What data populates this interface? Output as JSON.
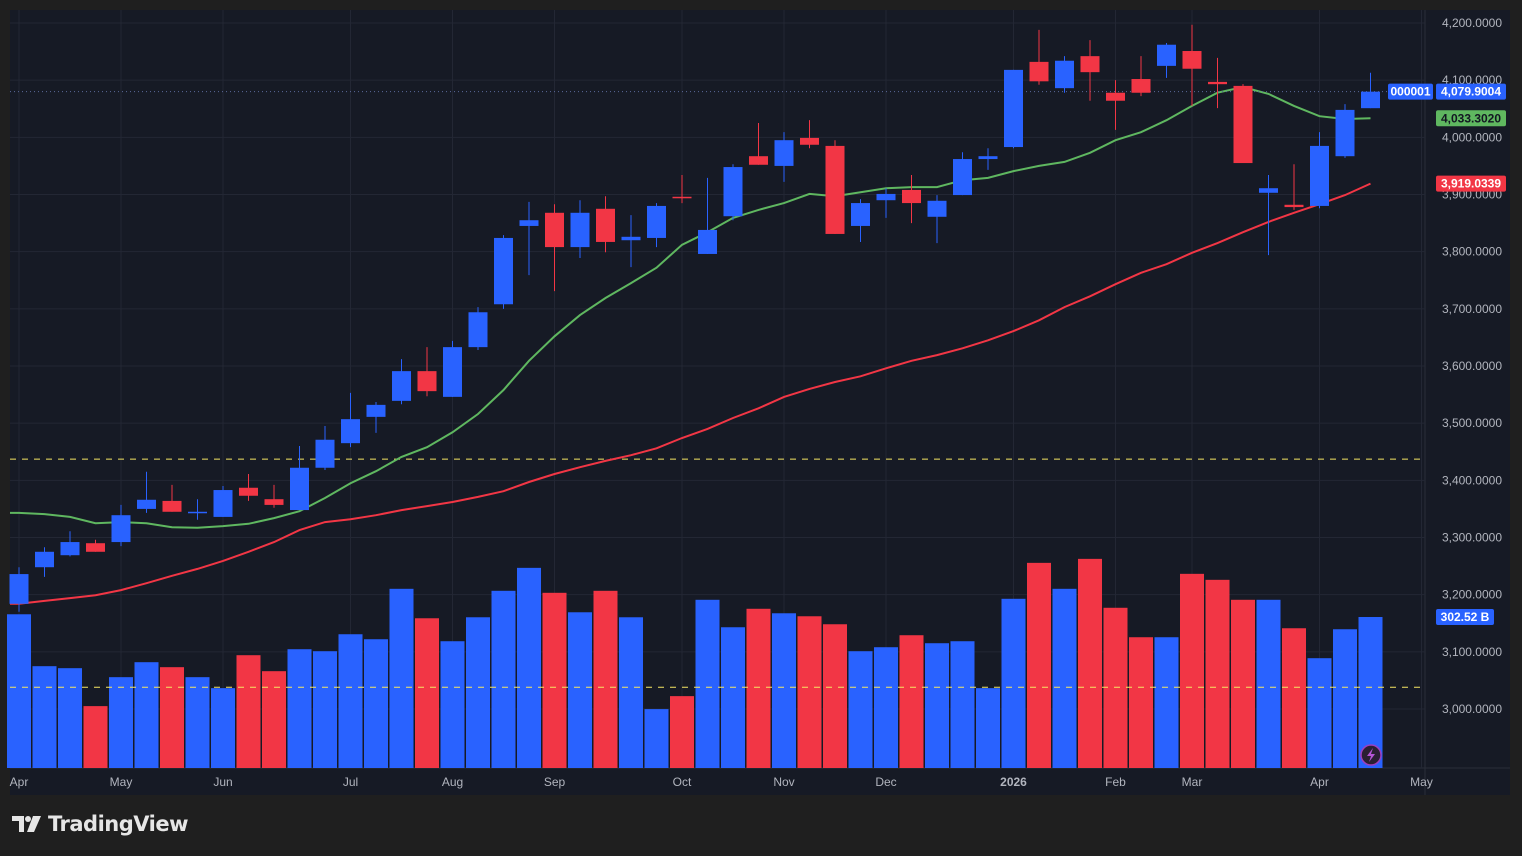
{
  "brand": {
    "name": "TradingView"
  },
  "colors": {
    "up": "#2962ff",
    "down": "#f23645",
    "ma_fast": "#5fb760",
    "ma_slow": "#f23645",
    "ref_line": "#f5e663",
    "background": "#161a25",
    "grid": "#232734",
    "text": "#b2b5be"
  },
  "chart_data": {
    "type": "candlestick",
    "interval": "weekly",
    "symbol_badge": "000001",
    "ylim": [
      2910,
      4230
    ],
    "y_ticks": [
      4200,
      4100,
      4000,
      3900,
      3800,
      3700,
      3600,
      3500,
      3400,
      3300,
      3200,
      3100,
      3000
    ],
    "y_tick_labels": [
      "4,200.0000",
      "4,100.0000",
      "4,000.0000",
      "3,900.0000",
      "3,800.0000",
      "3,700.0000",
      "3,600.0000",
      "3,500.0000",
      "3,400.0000",
      "3,300.0000",
      "3,200.0000",
      "3,100.0000",
      "3,000.0000"
    ],
    "x_ticks": [
      {
        "label": "Apr",
        "index": 0
      },
      {
        "label": "May",
        "index": 4
      },
      {
        "label": "Jun",
        "index": 8
      },
      {
        "label": "Jul",
        "index": 13
      },
      {
        "label": "Aug",
        "index": 17
      },
      {
        "label": "Sep",
        "index": 21
      },
      {
        "label": "Oct",
        "index": 26
      },
      {
        "label": "Nov",
        "index": 30
      },
      {
        "label": "Dec",
        "index": 34
      },
      {
        "label": "2026",
        "index": 39,
        "bold": true
      },
      {
        "label": "Feb",
        "index": 43
      },
      {
        "label": "Mar",
        "index": 46
      },
      {
        "label": "Apr",
        "index": 51
      },
      {
        "label": "May",
        "index": 55
      }
    ],
    "ohlc": [
      [
        3184,
        3248,
        3170,
        3236
      ],
      [
        3248,
        3283,
        3231,
        3275
      ],
      [
        3269,
        3311,
        3267,
        3292
      ],
      [
        3290,
        3296,
        3275,
        3275
      ],
      [
        3292,
        3357,
        3285,
        3339
      ],
      [
        3350,
        3415,
        3343,
        3366
      ],
      [
        3364,
        3392,
        3345,
        3345
      ],
      [
        3343,
        3367,
        3331,
        3345
      ],
      [
        3336,
        3390,
        3336,
        3383
      ],
      [
        3387,
        3411,
        3364,
        3373
      ],
      [
        3367,
        3392,
        3352,
        3357
      ],
      [
        3348,
        3460,
        3348,
        3422
      ],
      [
        3422,
        3495,
        3418,
        3471
      ],
      [
        3465,
        3553,
        3458,
        3507
      ],
      [
        3511,
        3537,
        3483,
        3532
      ],
      [
        3539,
        3612,
        3533,
        3591
      ],
      [
        3591,
        3633,
        3547,
        3556
      ],
      [
        3546,
        3644,
        3546,
        3633
      ],
      [
        3633,
        3703,
        3628,
        3694
      ],
      [
        3708,
        3829,
        3700,
        3824
      ],
      [
        3845,
        3887,
        3759,
        3855
      ],
      [
        3868,
        3883,
        3731,
        3808
      ],
      [
        3808,
        3890,
        3789,
        3868
      ],
      [
        3875,
        3897,
        3799,
        3817
      ],
      [
        3820,
        3864,
        3773,
        3826
      ],
      [
        3824,
        3885,
        3808,
        3880
      ],
      [
        3896,
        3934,
        3885,
        3894
      ],
      [
        3796,
        3929,
        3796,
        3838
      ],
      [
        3862,
        3953,
        3855,
        3948
      ],
      [
        3967,
        4025,
        3952,
        3952
      ],
      [
        3950,
        4009,
        3922,
        3995
      ],
      [
        3999,
        4030,
        3981,
        3987
      ],
      [
        3985,
        3995,
        3831,
        3831
      ],
      [
        3845,
        3892,
        3817,
        3885
      ],
      [
        3890,
        3911,
        3859,
        3901
      ],
      [
        3908,
        3934,
        3850,
        3885
      ],
      [
        3861,
        3899,
        3815,
        3889
      ],
      [
        3899,
        3974,
        3899,
        3962
      ],
      [
        3962,
        3981,
        3943,
        3967
      ],
      [
        3983,
        4118,
        3981,
        4118
      ],
      [
        4132,
        4188,
        4092,
        4098
      ],
      [
        4086,
        4142,
        4078,
        4134
      ],
      [
        4142,
        4170,
        4064,
        4114
      ],
      [
        4078,
        4100,
        4013,
        4064
      ],
      [
        4102,
        4142,
        4072,
        4078
      ],
      [
        4125,
        4165,
        4104,
        4162
      ],
      [
        4151,
        4197,
        4055,
        4120
      ],
      [
        4097,
        4139,
        4051,
        4093
      ],
      [
        4090,
        4093,
        3955,
        3955
      ],
      [
        3903,
        3934,
        3794,
        3911
      ],
      [
        3882,
        3953,
        3873,
        3878
      ],
      [
        3880,
        4009,
        3876,
        3985
      ],
      [
        3967,
        4058,
        3964,
        4048
      ],
      [
        4051,
        4113,
        4051,
        4079.9004
      ]
    ],
    "volume_unit": "B",
    "volume": [
      308,
      204,
      200,
      124,
      182,
      212,
      202,
      182,
      160,
      226,
      194,
      238,
      234,
      268,
      258,
      359,
      300,
      254,
      302,
      355,
      401,
      351,
      312,
      355,
      302,
      118,
      144,
      337,
      282,
      319,
      310,
      304,
      288,
      234,
      242,
      266,
      250,
      254,
      160,
      339,
      411,
      359,
      419,
      321,
      262,
      262,
      389,
      377,
      337,
      337,
      280,
      220,
      278,
      302.52
    ],
    "ma_fast": [
      3343,
      3341,
      3336,
      3325,
      3327,
      3325,
      3318,
      3317,
      3320,
      3324,
      3334,
      3346,
      3369,
      3395,
      3416,
      3441,
      3458,
      3484,
      3516,
      3558,
      3609,
      3652,
      3689,
      3719,
      3745,
      3772,
      3812,
      3834,
      3859,
      3873,
      3885,
      3901,
      3897,
      3904,
      3911,
      3913,
      3913,
      3925,
      3929,
      3941,
      3950,
      3957,
      3973,
      3995,
      4009,
      4030,
      4055,
      4078,
      4088,
      4076,
      4055,
      4037,
      4032,
      4033.302
    ],
    "ma_slow": [
      3184,
      3189,
      3194,
      3199,
      3208,
      3220,
      3233,
      3245,
      3259,
      3275,
      3292,
      3313,
      3327,
      3332,
      3339,
      3348,
      3355,
      3362,
      3371,
      3381,
      3397,
      3411,
      3423,
      3434,
      3444,
      3456,
      3474,
      3490,
      3509,
      3526,
      3546,
      3560,
      3572,
      3582,
      3596,
      3609,
      3619,
      3631,
      3645,
      3661,
      3680,
      3703,
      3722,
      3743,
      3763,
      3778,
      3798,
      3815,
      3834,
      3852,
      3868,
      3883,
      3899,
      3919.0339
    ],
    "reference_lines": [
      3437,
      3038
    ],
    "last_price": 4079.9004,
    "last_price_label": "4,079.9004",
    "ma_fast_label": "4,033.3020",
    "ma_slow_label": "3,919.0339",
    "volume_label": "302.52 B"
  }
}
